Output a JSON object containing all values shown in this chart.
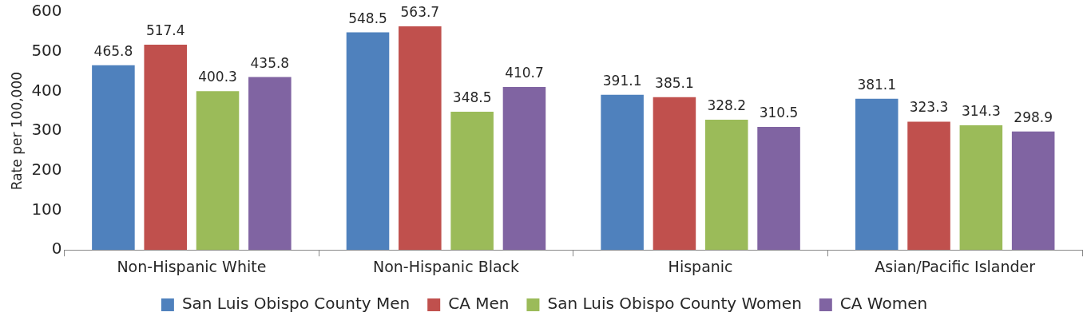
{
  "chart_data": {
    "type": "bar",
    "ylabel": "Rate per 100,000",
    "categories": [
      "Non-Hispanic White",
      "Non-Hispanic Black",
      "Hispanic",
      "Asian/Pacific Islander"
    ],
    "series": [
      {
        "name": "San Luis Obispo County Men",
        "color": "#4f81bd",
        "values": [
          465.8,
          548.5,
          391.1,
          381.1
        ]
      },
      {
        "name": "CA Men",
        "color": "#c0504d",
        "values": [
          517.4,
          563.7,
          385.1,
          323.3
        ]
      },
      {
        "name": "San Luis Obispo County Women",
        "color": "#9bbb59",
        "values": [
          400.3,
          348.5,
          328.2,
          314.3
        ]
      },
      {
        "name": "CA Women",
        "color": "#8064a2",
        "values": [
          435.8,
          410.7,
          310.5,
          298.9
        ]
      }
    ],
    "ylim": [
      0,
      600
    ],
    "yticks": [
      0,
      100,
      200,
      300,
      400,
      500,
      600
    ],
    "grid": false,
    "legend": "bottom",
    "data_labels": true
  }
}
